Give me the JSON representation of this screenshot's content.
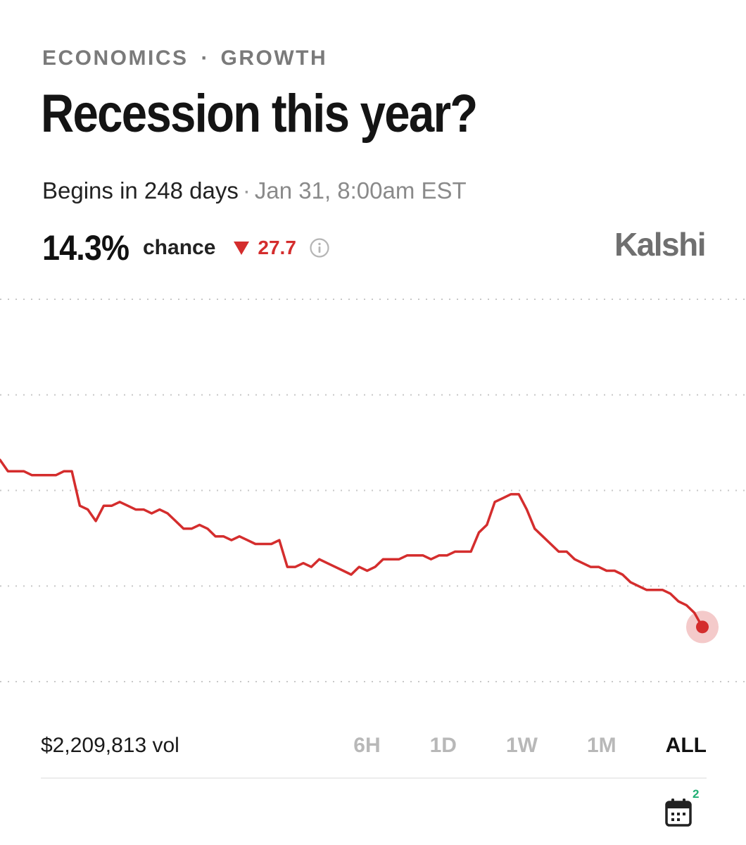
{
  "header": {
    "category": "ECONOMICS",
    "separator": "·",
    "subcategory": "GROWTH",
    "title": "Recession this year?",
    "begins": "Begins in 248 days",
    "dot": "·",
    "date": "Jan 31, 8:00am EST"
  },
  "stats": {
    "percent": "14.3%",
    "chance_label": "chance",
    "change": "27.7",
    "change_direction": "down",
    "brand": "Kalshi"
  },
  "colors": {
    "line": "#d42d2d",
    "down": "#d42d2d",
    "badge": "#1fae73"
  },
  "chart_data": {
    "type": "line",
    "ylim": [
      0,
      100
    ],
    "grid": true,
    "series": [
      {
        "values": [
          58,
          55,
          55,
          55,
          54,
          54,
          54,
          54,
          55,
          55,
          46,
          45,
          42,
          46,
          46,
          47,
          46,
          45,
          45,
          44,
          45,
          44,
          42,
          40,
          40,
          41,
          40,
          38,
          38,
          37,
          38,
          37,
          36,
          36,
          36,
          37,
          30,
          30,
          31,
          30,
          32,
          31,
          30,
          29,
          28,
          30,
          29,
          30,
          32,
          32,
          32,
          33,
          33,
          33,
          32,
          33,
          33,
          34,
          34,
          34,
          39,
          41,
          47,
          48,
          49,
          49,
          45,
          40,
          38,
          36,
          34,
          34,
          32,
          31,
          30,
          30,
          29,
          29,
          28,
          26,
          25,
          24,
          24,
          24,
          23,
          21,
          20,
          18,
          14.3
        ]
      }
    ]
  },
  "footer": {
    "volume": "$2,209,813 vol",
    "ranges": [
      "6H",
      "1D",
      "1W",
      "1M",
      "ALL"
    ],
    "active_range": "ALL",
    "badge": "2"
  }
}
